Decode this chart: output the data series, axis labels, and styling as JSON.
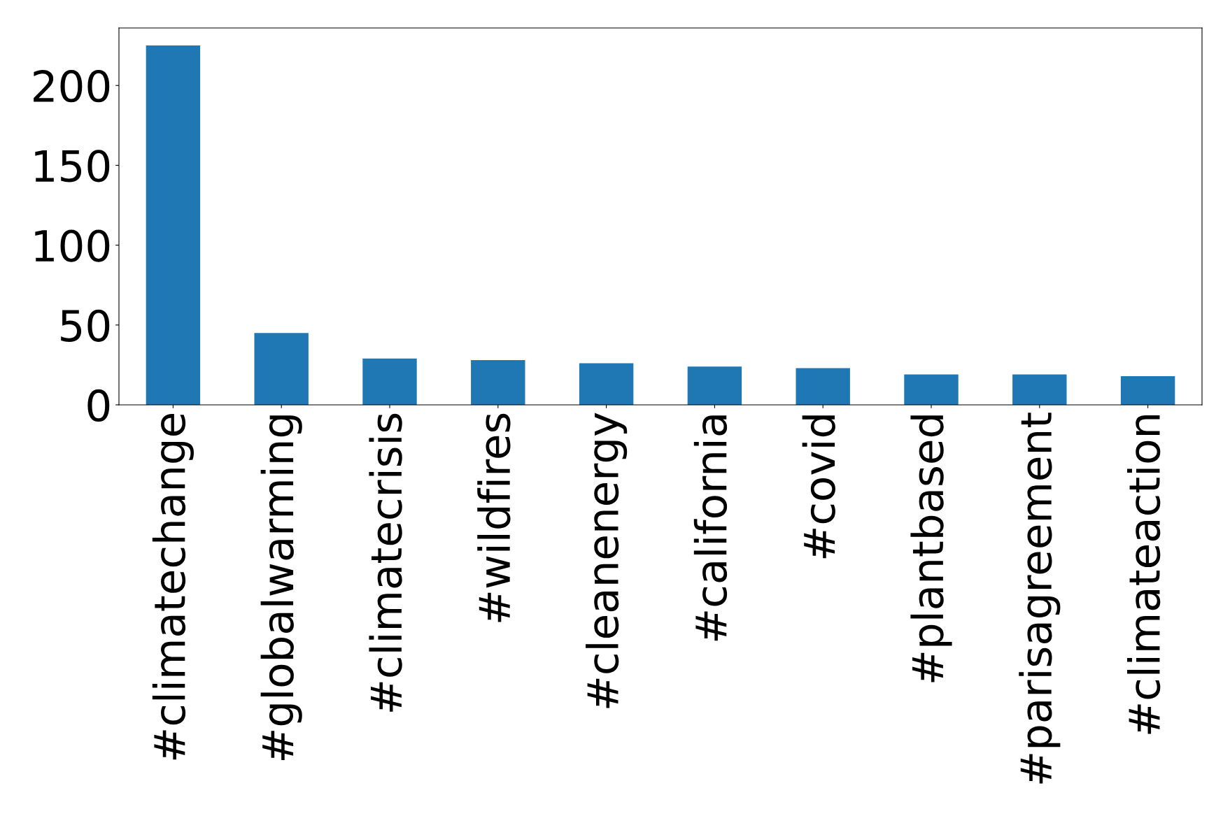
{
  "chart_data": {
    "type": "bar",
    "categories": [
      "#climatechange",
      "#globalwarming",
      "#climatecrisis",
      "#wildfires",
      "#cleanenergy",
      "#california",
      "#covid",
      "#plantbased",
      "#parisagreement",
      "#climateaction"
    ],
    "values": [
      225,
      45,
      29,
      28,
      26,
      24,
      23,
      19,
      19,
      18
    ],
    "color": "#1f77b4",
    "ylim": [
      0,
      236
    ],
    "yticks": [
      0,
      50,
      100,
      150,
      200
    ],
    "grid": false,
    "legend": false
  }
}
